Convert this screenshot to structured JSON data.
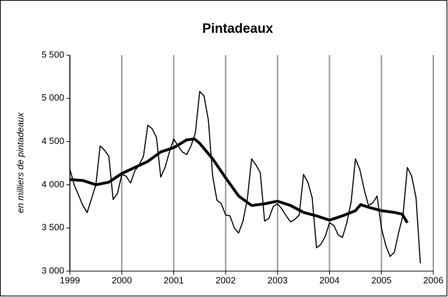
{
  "chart_data": {
    "type": "line",
    "title": "Pintadeaux",
    "y_label": "en milliers de pintadeaux",
    "xlim": [
      1999,
      2006
    ],
    "xticks": [
      1999,
      2000,
      2001,
      2002,
      2003,
      2004,
      2005,
      2006
    ],
    "ylim": [
      3000,
      5500
    ],
    "yticks": [
      {
        "value": 3000,
        "label": "3 000"
      },
      {
        "value": 3500,
        "label": "3 500"
      },
      {
        "value": 4000,
        "label": "4 000"
      },
      {
        "value": 4500,
        "label": "4 500"
      },
      {
        "value": 5000,
        "label": "5 000"
      },
      {
        "value": 5500,
        "label": "5 500"
      }
    ],
    "grid": "x",
    "series": [
      {
        "color": "#000000",
        "width": 1.5,
        "x": [
          1999,
          1999.083,
          1999.167,
          1999.25,
          1999.333,
          1999.417,
          1999.5,
          1999.583,
          1999.667,
          1999.75,
          1999.833,
          1999.917,
          2000,
          2000.083,
          2000.167,
          2000.25,
          2000.333,
          2000.417,
          2000.5,
          2000.583,
          2000.667,
          2000.75,
          2000.833,
          2000.917,
          2001,
          2001.083,
          2001.167,
          2001.25,
          2001.333,
          2001.417,
          2001.5,
          2001.583,
          2001.667,
          2001.75,
          2001.833,
          2001.917,
          2002,
          2002.083,
          2002.167,
          2002.25,
          2002.333,
          2002.417,
          2002.5,
          2002.583,
          2002.667,
          2002.75,
          2002.833,
          2002.917,
          2003,
          2003.083,
          2003.167,
          2003.25,
          2003.333,
          2003.417,
          2003.5,
          2003.583,
          2003.667,
          2003.75,
          2003.833,
          2003.917,
          2004,
          2004.083,
          2004.167,
          2004.25,
          2004.333,
          2004.417,
          2004.5,
          2004.583,
          2004.667,
          2004.75,
          2004.833,
          2004.917,
          2005,
          2005.083,
          2005.167,
          2005.25,
          2005.333,
          2005.417,
          2005.5,
          2005.583,
          2005.667,
          2005.75
        ],
        "values": [
          4180,
          4000,
          3880,
          3760,
          3680,
          3840,
          4000,
          4450,
          4400,
          4330,
          3830,
          3900,
          4120,
          4100,
          4020,
          4160,
          4230,
          4330,
          4690,
          4650,
          4550,
          4090,
          4200,
          4380,
          4530,
          4450,
          4380,
          4350,
          4450,
          4600,
          5080,
          5030,
          4750,
          4100,
          3820,
          3780,
          3650,
          3640,
          3500,
          3440,
          3580,
          3830,
          4300,
          4230,
          4140,
          3580,
          3610,
          3750,
          3780,
          3720,
          3640,
          3570,
          3600,
          3650,
          4120,
          4030,
          3850,
          3270,
          3310,
          3400,
          3560,
          3530,
          3420,
          3390,
          3560,
          3800,
          4300,
          4180,
          3950,
          3760,
          3790,
          3870,
          3500,
          3300,
          3170,
          3220,
          3450,
          3650,
          4200,
          4100,
          3850,
          3090
        ]
      },
      {
        "color": "#000000",
        "width": 4,
        "x": [
          1999,
          1999.25,
          1999.5,
          1999.75,
          2000,
          2000.25,
          2000.5,
          2000.75,
          2001,
          2001.25,
          2001.4,
          2001.5,
          2001.75,
          2002,
          2002.25,
          2002.5,
          2002.75,
          2003,
          2003.25,
          2003.5,
          2003.75,
          2004,
          2004.25,
          2004.5,
          2004.6,
          2004.75,
          2005,
          2005.25,
          2005.4,
          2005.5
        ],
        "values": [
          4060,
          4050,
          4000,
          4030,
          4130,
          4200,
          4270,
          4380,
          4430,
          4520,
          4530,
          4480,
          4300,
          4080,
          3870,
          3760,
          3780,
          3810,
          3760,
          3680,
          3640,
          3590,
          3640,
          3700,
          3770,
          3740,
          3700,
          3680,
          3660,
          3560
        ]
      }
    ]
  }
}
